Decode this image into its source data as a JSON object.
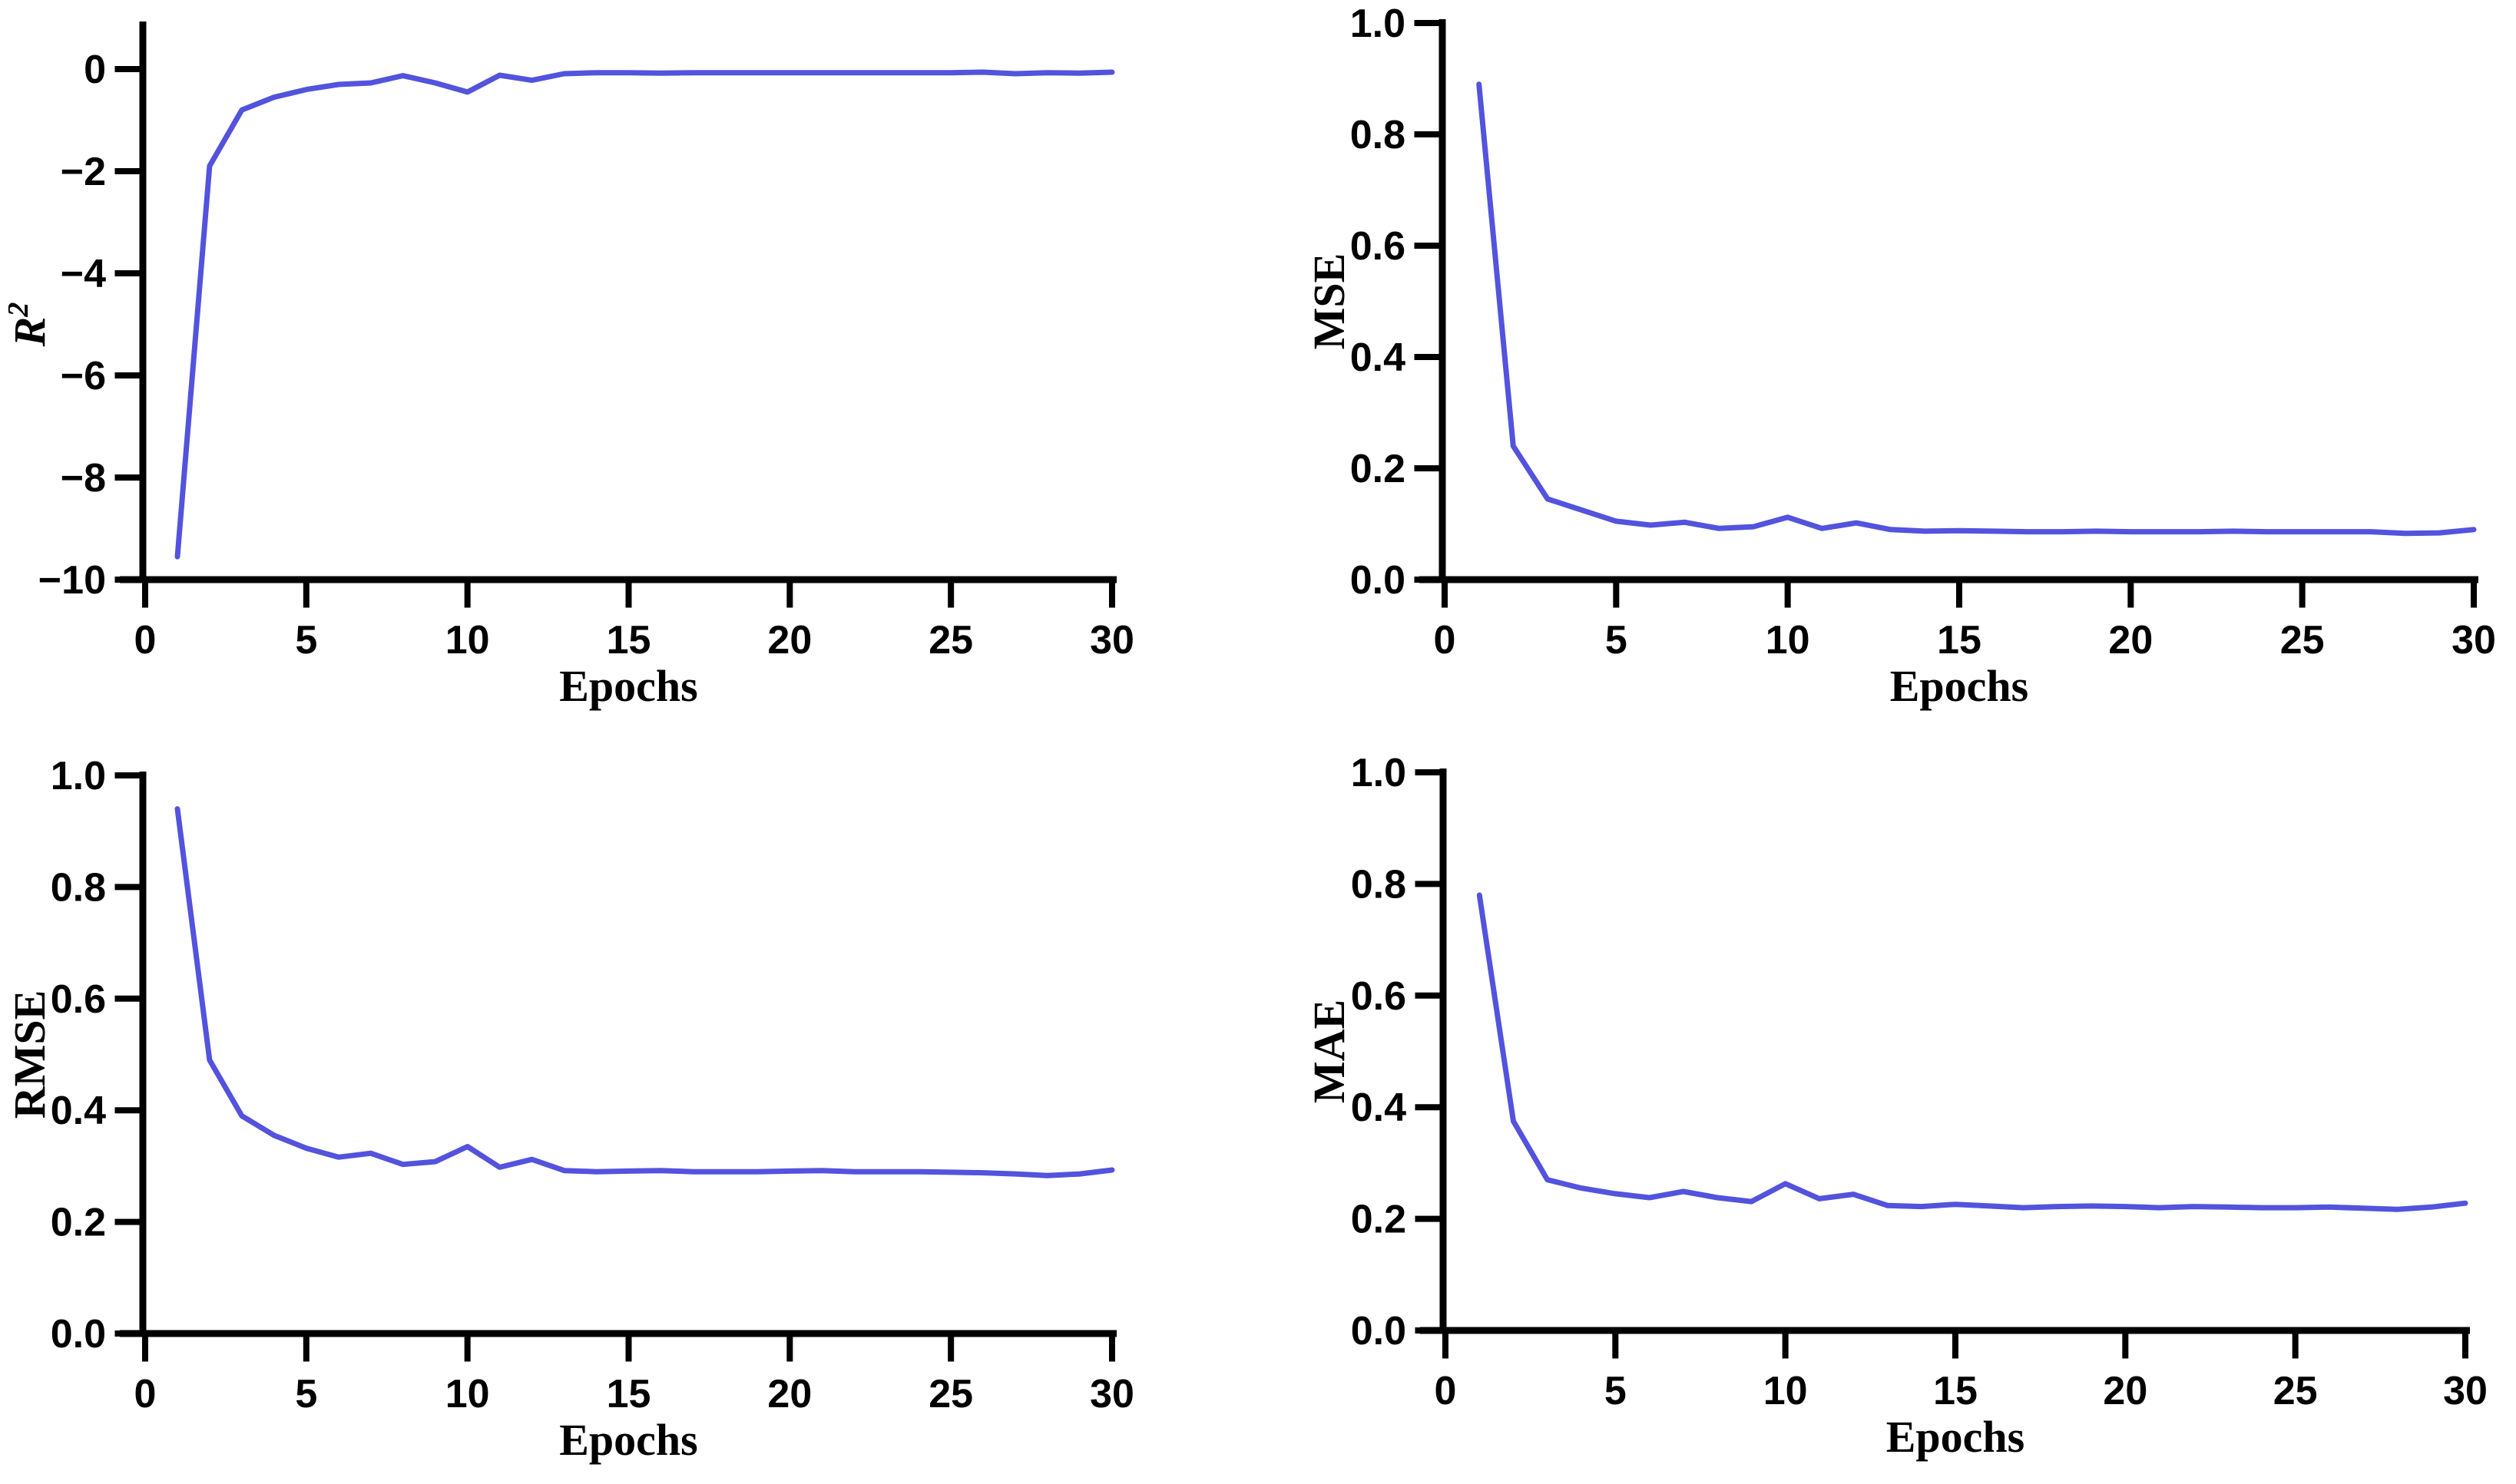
{
  "figure": {
    "background_color": "#ffffff",
    "axis_color": "#000000",
    "line_color": "#5353DE"
  },
  "chart_data": [
    {
      "id": "r2",
      "type": "line",
      "title": "",
      "xlabel": "Epochs",
      "ylabel": "R",
      "ylabel_sup": "2",
      "ylabel_italic": true,
      "legend": null,
      "grid": false,
      "xlim": [
        0,
        30
      ],
      "ylim": [
        -10,
        1
      ],
      "xtick_values": [
        0,
        5,
        10,
        15,
        20,
        25,
        30
      ],
      "xtick_labels": [
        "0",
        "5",
        "10",
        "15",
        "20",
        "25",
        "30"
      ],
      "ytick_values": [
        0,
        -2,
        -4,
        -6,
        -8,
        -10
      ],
      "ytick_labels": [
        "0",
        "−2",
        "−4",
        "−6",
        "−8",
        "−10"
      ],
      "x": [
        1,
        2,
        3,
        4,
        5,
        6,
        7,
        8,
        9,
        10,
        11,
        12,
        13,
        14,
        15,
        16,
        17,
        18,
        19,
        20,
        21,
        22,
        23,
        24,
        25,
        26,
        27,
        28,
        29,
        30
      ],
      "values": [
        -9.55,
        -1.9,
        -0.8,
        -0.55,
        -0.4,
        -0.3,
        -0.27,
        -0.13,
        -0.27,
        -0.45,
        -0.12,
        -0.22,
        -0.09,
        -0.07,
        -0.07,
        -0.08,
        -0.07,
        -0.07,
        -0.07,
        -0.07,
        -0.07,
        -0.07,
        -0.07,
        -0.07,
        -0.07,
        -0.06,
        -0.09,
        -0.07,
        -0.08,
        -0.06
      ],
      "line_color": "#5353DE"
    },
    {
      "id": "mse",
      "type": "line",
      "title": "",
      "xlabel": "Epochs",
      "ylabel": "MSE",
      "ylabel_sup": "",
      "ylabel_italic": false,
      "legend": null,
      "grid": false,
      "xlim": [
        0,
        30
      ],
      "ylim": [
        0,
        1
      ],
      "xtick_values": [
        0,
        5,
        10,
        15,
        20,
        25,
        30
      ],
      "xtick_labels": [
        "0",
        "5",
        "10",
        "15",
        "20",
        "25",
        "30"
      ],
      "ytick_values": [
        1.0,
        0.8,
        0.6,
        0.4,
        0.2,
        0.0
      ],
      "ytick_labels": [
        "1.0",
        "0.8",
        "0.6",
        "0.4",
        "0.2",
        "0.0"
      ],
      "x": [
        1,
        2,
        3,
        4,
        5,
        6,
        7,
        8,
        9,
        10,
        11,
        12,
        13,
        14,
        15,
        16,
        17,
        18,
        19,
        20,
        21,
        22,
        23,
        24,
        25,
        26,
        27,
        28,
        29,
        30
      ],
      "values": [
        0.89,
        0.24,
        0.145,
        0.125,
        0.105,
        0.098,
        0.103,
        0.092,
        0.095,
        0.112,
        0.092,
        0.102,
        0.09,
        0.087,
        0.088,
        0.087,
        0.086,
        0.086,
        0.087,
        0.086,
        0.086,
        0.086,
        0.087,
        0.086,
        0.086,
        0.086,
        0.086,
        0.083,
        0.084,
        0.09
      ],
      "line_color": "#5353DE"
    },
    {
      "id": "rmse",
      "type": "line",
      "title": "",
      "xlabel": "Epochs",
      "ylabel": "RMSE",
      "ylabel_sup": "",
      "ylabel_italic": false,
      "legend": null,
      "grid": false,
      "xlim": [
        0,
        30
      ],
      "ylim": [
        0,
        1
      ],
      "xtick_values": [
        0,
        5,
        10,
        15,
        20,
        25,
        30
      ],
      "xtick_labels": [
        "0",
        "5",
        "10",
        "15",
        "20",
        "25",
        "30"
      ],
      "ytick_values": [
        1.0,
        0.8,
        0.6,
        0.4,
        0.2,
        0.0
      ],
      "ytick_labels": [
        "1.0",
        "0.8",
        "0.6",
        "0.4",
        "0.2",
        "0.0"
      ],
      "x": [
        1,
        2,
        3,
        4,
        5,
        6,
        7,
        8,
        9,
        10,
        11,
        12,
        13,
        14,
        15,
        16,
        17,
        18,
        19,
        20,
        21,
        22,
        23,
        24,
        25,
        26,
        27,
        28,
        29,
        30
      ],
      "values": [
        0.94,
        0.49,
        0.39,
        0.355,
        0.332,
        0.316,
        0.323,
        0.303,
        0.308,
        0.335,
        0.298,
        0.312,
        0.292,
        0.29,
        0.291,
        0.292,
        0.29,
        0.29,
        0.29,
        0.291,
        0.292,
        0.29,
        0.29,
        0.29,
        0.289,
        0.288,
        0.286,
        0.283,
        0.286,
        0.293
      ],
      "line_color": "#5353DE"
    },
    {
      "id": "mae",
      "type": "line",
      "title": "",
      "xlabel": "Epochs",
      "ylabel": "MAE",
      "ylabel_sup": "",
      "ylabel_italic": false,
      "legend": null,
      "grid": false,
      "xlim": [
        0,
        30
      ],
      "ylim": [
        0,
        1
      ],
      "xtick_values": [
        0,
        5,
        10,
        15,
        20,
        25,
        30
      ],
      "xtick_labels": [
        "0",
        "5",
        "10",
        "15",
        "20",
        "25",
        "30"
      ],
      "ytick_values": [
        1.0,
        0.8,
        0.6,
        0.4,
        0.2,
        0.0
      ],
      "ytick_labels": [
        "1.0",
        "0.8",
        "0.6",
        "0.4",
        "0.2",
        "0.0"
      ],
      "x": [
        1,
        2,
        3,
        4,
        5,
        6,
        7,
        8,
        9,
        10,
        11,
        12,
        13,
        14,
        15,
        16,
        17,
        18,
        19,
        20,
        21,
        22,
        23,
        24,
        25,
        26,
        27,
        28,
        29,
        30
      ],
      "values": [
        0.78,
        0.375,
        0.27,
        0.255,
        0.245,
        0.238,
        0.249,
        0.238,
        0.231,
        0.263,
        0.236,
        0.244,
        0.224,
        0.222,
        0.226,
        0.223,
        0.22,
        0.222,
        0.223,
        0.222,
        0.22,
        0.222,
        0.221,
        0.22,
        0.22,
        0.221,
        0.219,
        0.217,
        0.221,
        0.228
      ],
      "line_color": "#5353DE"
    }
  ]
}
